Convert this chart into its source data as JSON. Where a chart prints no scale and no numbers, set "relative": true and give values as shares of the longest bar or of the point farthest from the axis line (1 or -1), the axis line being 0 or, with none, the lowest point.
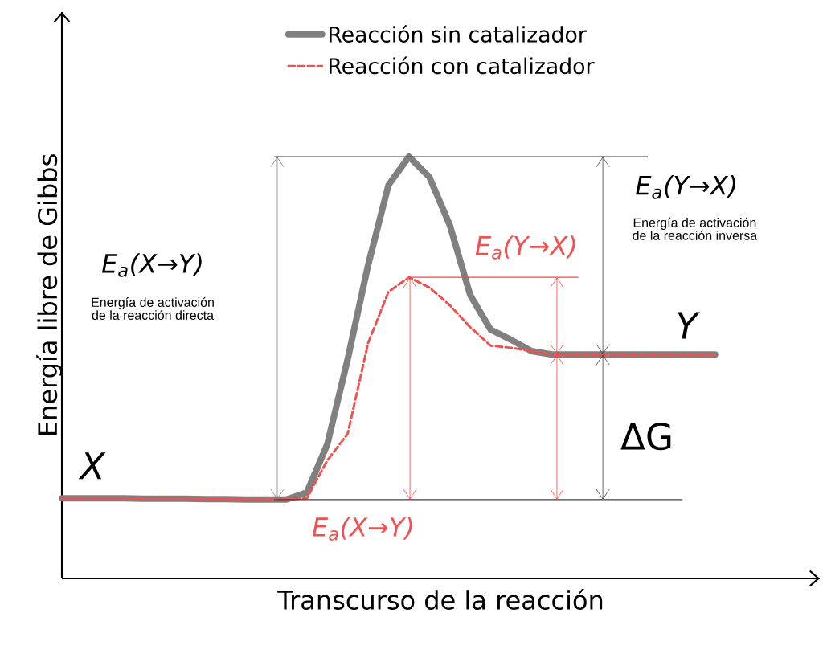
{
  "chart_data": {
    "type": "line",
    "relative": true,
    "xlabel": "Transcurso de la reacción",
    "ylabel": "Energía libre de Gibbs",
    "legend": "top",
    "marker": "none",
    "categories": [
      null,
      null,
      null,
      null,
      null,
      null,
      null,
      null,
      null,
      null,
      null,
      null,
      null,
      null,
      null,
      null,
      null,
      null,
      null,
      null,
      null,
      null,
      null,
      null,
      null,
      null,
      null,
      null,
      null,
      null,
      null,
      null,
      null
    ],
    "series": [
      {
        "name": "Reacción sin catalizador",
        "color": "#808080",
        "line_style": "solid",
        "values": [
          0.19,
          0.19,
          0.19,
          0.19,
          0.189,
          0.189,
          0.189,
          0.188,
          0.188,
          0.187,
          0.187,
          0.187,
          0.204,
          0.318,
          0.52,
          0.743,
          0.933,
          1.0,
          0.952,
          0.838,
          0.672,
          0.59,
          0.566,
          0.539,
          0.531,
          0.531,
          0.531,
          0.531,
          0.531,
          0.531,
          0.531,
          0.531,
          0.531
        ]
      },
      {
        "name": "Reacción con catalizador",
        "color": "#f05050",
        "line_style": "dashed",
        "values": [
          0.19,
          0.19,
          0.19,
          0.19,
          0.189,
          0.189,
          0.189,
          0.188,
          0.188,
          0.187,
          0.187,
          0.187,
          0.19,
          0.28,
          0.343,
          0.558,
          0.68,
          0.714,
          0.69,
          0.648,
          0.596,
          0.552,
          0.547,
          0.539,
          0.531,
          0.531,
          0.531,
          0.531,
          0.531,
          0.531,
          0.531,
          0.531,
          0.531
        ]
      }
    ],
    "ref_lines": [
      {
        "axis": "y",
        "value": 0.187,
        "color": "#404040"
      },
      {
        "axis": "y",
        "value": 1.0,
        "color": "#404040"
      },
      {
        "axis": "y",
        "value": 0.714,
        "color": "#ff4040"
      }
    ],
    "annotations": [
      "E$_{a}$(X→Y)",
      "Energía de activación de la reacción directa",
      "E$_{a}$(Y→X)",
      "Energía de activación de la reacción inversa",
      "E$_{a}$(Y→X)",
      "E$_{a}$(X→Y)",
      "X",
      "Y",
      "ΔG"
    ]
  }
}
